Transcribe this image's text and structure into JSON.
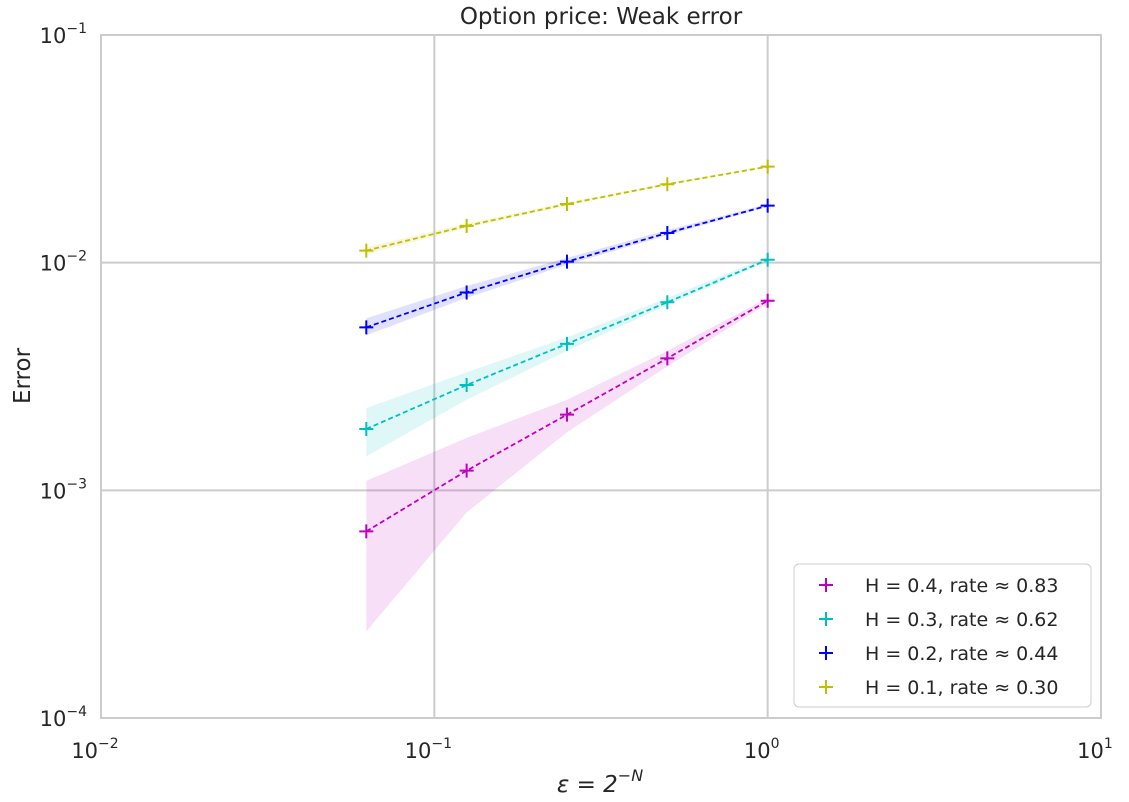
{
  "chart_data": {
    "type": "line",
    "title": "Option price: Weak error",
    "xlabel": {
      "base": "ε = 2",
      "exponent": "−N"
    },
    "ylabel": "Error",
    "x_scale": "log",
    "y_scale": "log",
    "xlim": [
      0.01,
      10
    ],
    "ylim": [
      0.0001,
      0.1
    ],
    "grid": true,
    "legend_position": "bottom-right",
    "x_ticks": [
      {
        "value": 0.01,
        "base": "10",
        "exp": "−2"
      },
      {
        "value": 0.1,
        "base": "10",
        "exp": "−1"
      },
      {
        "value": 1,
        "base": "10",
        "exp": "0"
      },
      {
        "value": 10,
        "base": "10",
        "exp": "1"
      }
    ],
    "y_ticks": [
      {
        "value": 0.0001,
        "base": "10",
        "exp": "−4"
      },
      {
        "value": 0.001,
        "base": "10",
        "exp": "−3"
      },
      {
        "value": 0.01,
        "base": "10",
        "exp": "−2"
      },
      {
        "value": 0.1,
        "base": "10",
        "exp": "−1"
      }
    ],
    "x": [
      0.0625,
      0.125,
      0.25,
      0.5,
      1.0
    ],
    "series": [
      {
        "name": "H = 0.4, rate  ≈  0.83",
        "color": "#c000c0",
        "values": [
          0.00066,
          0.00122,
          0.00215,
          0.0038,
          0.0068
        ],
        "band_low": [
          0.00024,
          0.0008,
          0.0018,
          0.0035,
          0.0066
        ],
        "band_high": [
          0.0011,
          0.0017,
          0.0025,
          0.0041,
          0.007
        ]
      },
      {
        "name": "H = 0.3, rate  ≈  0.62",
        "color": "#00bfbf",
        "values": [
          0.00186,
          0.0029,
          0.0044,
          0.0067,
          0.0103
        ],
        "band_low": [
          0.00141,
          0.0025,
          0.0041,
          0.0065,
          0.0101
        ],
        "band_high": [
          0.0023,
          0.0033,
          0.0047,
          0.007,
          0.0106
        ]
      },
      {
        "name": "H = 0.2, rate  ≈  0.44",
        "color": "#0000ff",
        "values": [
          0.0052,
          0.0074,
          0.0101,
          0.0135,
          0.0178
        ],
        "band_low": [
          0.0048,
          0.007,
          0.0098,
          0.0132,
          0.0176
        ],
        "band_high": [
          0.0057,
          0.0079,
          0.0105,
          0.0139,
          0.0181
        ]
      },
      {
        "name": "H = 0.1, rate  ≈  0.30",
        "color": "#bfbf00",
        "values": [
          0.0113,
          0.0145,
          0.0181,
          0.0221,
          0.0264
        ],
        "band_low": [
          0.0109,
          0.0142,
          0.0178,
          0.0219,
          0.0262
        ],
        "band_high": [
          0.0117,
          0.0149,
          0.0184,
          0.0224,
          0.0267
        ]
      }
    ]
  }
}
